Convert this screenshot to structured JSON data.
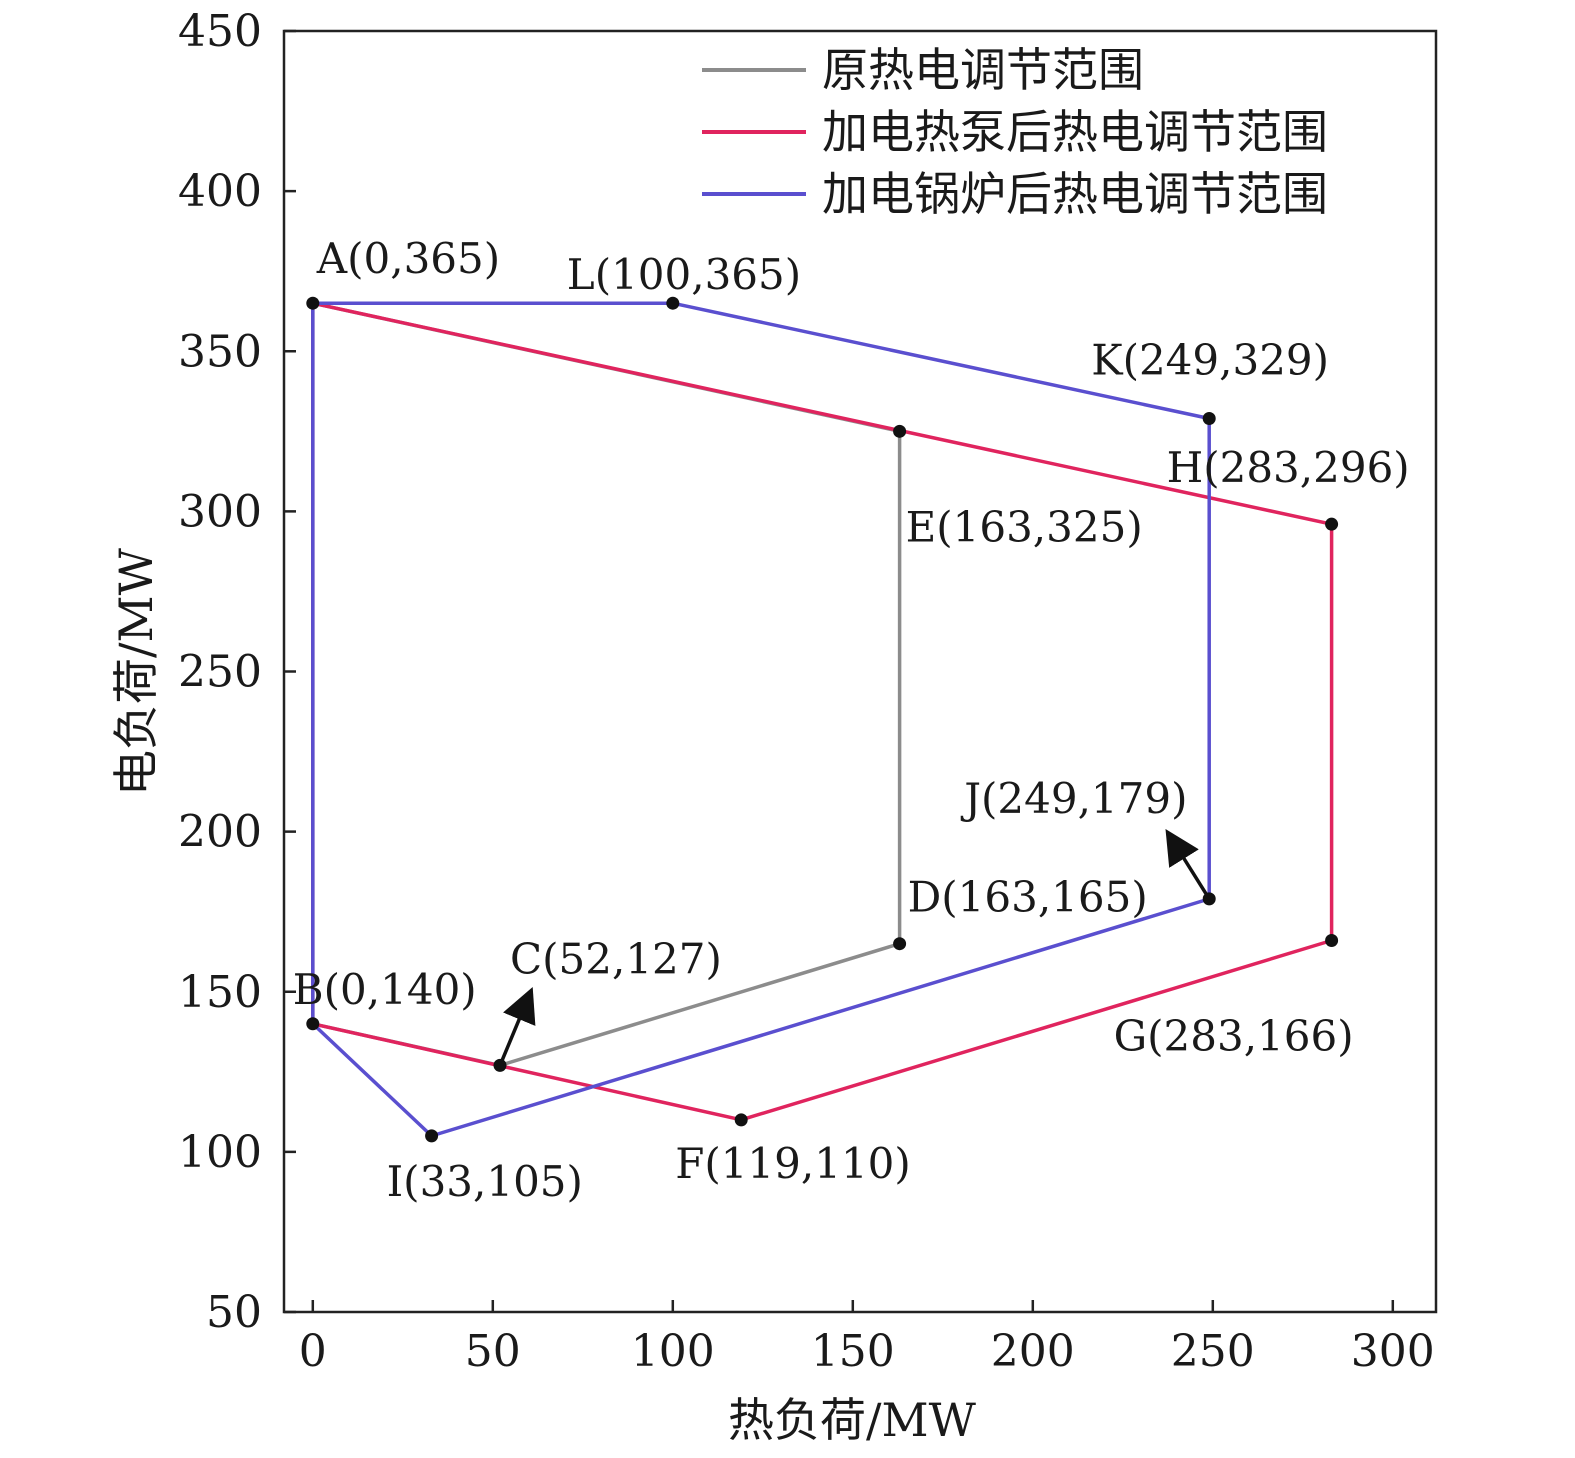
{
  "chart_data": {
    "type": "line",
    "xlabel": "热负荷/MW",
    "ylabel": "电负荷/MW",
    "xlim": [
      -8,
      312
    ],
    "ylim": [
      50,
      450
    ],
    "xticks": [
      0,
      50,
      100,
      150,
      200,
      250,
      300
    ],
    "yticks": [
      50,
      100,
      150,
      200,
      250,
      300,
      350,
      400,
      450
    ],
    "legend_position": "top-right",
    "grid": false,
    "points": [
      {
        "id": "A",
        "x": 0,
        "y": 365,
        "label": "A(0,365)"
      },
      {
        "id": "L",
        "x": 100,
        "y": 365,
        "label": "L(100,365)"
      },
      {
        "id": "K",
        "x": 249,
        "y": 329,
        "label": "K(249,329)"
      },
      {
        "id": "H",
        "x": 283,
        "y": 296,
        "label": "H(283,296)"
      },
      {
        "id": "E",
        "x": 163,
        "y": 325,
        "label": "E(163,325)"
      },
      {
        "id": "J",
        "x": 249,
        "y": 179,
        "label": "J(249,179)"
      },
      {
        "id": "D",
        "x": 163,
        "y": 165,
        "label": "D(163,165)"
      },
      {
        "id": "C",
        "x": 52,
        "y": 127,
        "label": "C(52,127)"
      },
      {
        "id": "B",
        "x": 0,
        "y": 140,
        "label": "B(0,140)"
      },
      {
        "id": "G",
        "x": 283,
        "y": 166,
        "label": "G(283,166)"
      },
      {
        "id": "I",
        "x": 33,
        "y": 105,
        "label": "I(33,105)"
      },
      {
        "id": "F",
        "x": 119,
        "y": 110,
        "label": "F(119,110)"
      }
    ],
    "series": [
      {
        "name": "原热电调节范围",
        "color": "#8c8c8c",
        "path": [
          "A",
          "E",
          "D",
          "C",
          "B",
          "A"
        ]
      },
      {
        "name": "加电热泵后热电调节范围",
        "color": "#e0245e",
        "path": [
          "A",
          "H",
          "G",
          "F",
          "B",
          "A"
        ]
      },
      {
        "name": "加电锅炉后热电调节范围",
        "color": "#5a4fcf",
        "path": [
          "A",
          "L",
          "K",
          "J",
          "I",
          "B",
          "A"
        ]
      }
    ]
  }
}
